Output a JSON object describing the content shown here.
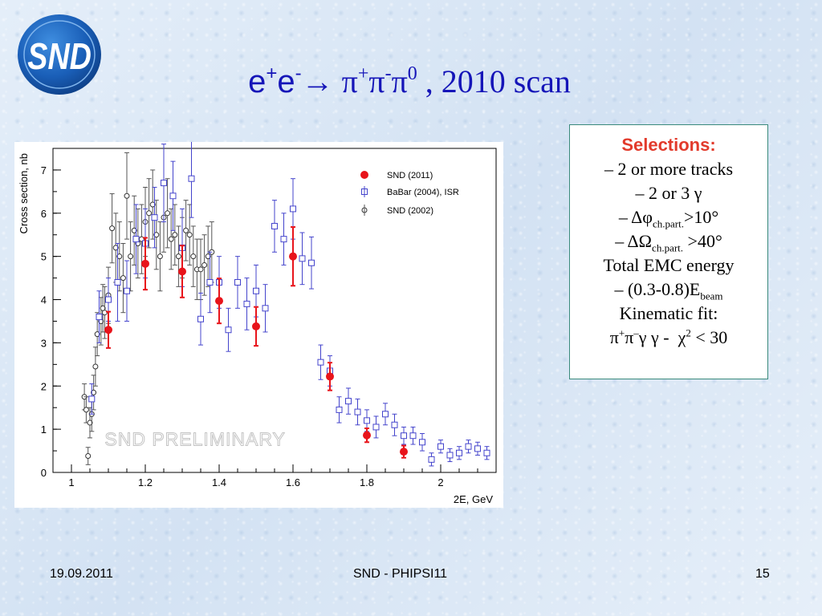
{
  "slide": {
    "logo_text": "SND",
    "title": {
      "reaction": "e⁺e⁻→ π⁺π⁻π⁰",
      "rest": ", 2010 scan"
    },
    "footer": {
      "date": "19.09.2011",
      "center": "SND - PHIPSI11",
      "page": "15"
    }
  },
  "selections": {
    "heading": "Selections:",
    "lines": [
      "– 2 or more tracks",
      "– 2 or 3 γ",
      "– Δφch.part.>10°",
      "– ΔΩch.part. >40°",
      "Total EMC energy",
      "– (0.3-0.8)Ebeam",
      "Kinematic fit:",
      "π⁺π⁻γ γ - χ² < 30"
    ]
  },
  "colors": {
    "title": "#1515b8",
    "snd2011": "#e8141b",
    "babar": "#4444cc",
    "snd2002": "#555555",
    "selections_heading": "#e23a2b"
  },
  "chart_data": {
    "type": "scatter",
    "xlabel": "2E, GeV",
    "ylabel": "Cross section, nb",
    "xlim": [
      0.95,
      2.15
    ],
    "ylim": [
      0,
      7.5
    ],
    "x_ticks": [
      "1",
      "1.2",
      "1.4",
      "1.6",
      "1.8",
      "2"
    ],
    "y_ticks": [
      "0",
      "1",
      "2",
      "3",
      "4",
      "5",
      "6",
      "7"
    ],
    "watermark": "SND PRELIMINARY",
    "legend_position": "top-right",
    "series": [
      {
        "name": "SND (2011)",
        "marker": "filled-circle",
        "points": [
          {
            "x": 1.1,
            "y": 3.3,
            "err": 0.42
          },
          {
            "x": 1.2,
            "y": 4.83,
            "err": 0.6
          },
          {
            "x": 1.3,
            "y": 4.65,
            "err": 0.6
          },
          {
            "x": 1.4,
            "y": 3.97,
            "err": 0.52
          },
          {
            "x": 1.5,
            "y": 3.38,
            "err": 0.45
          },
          {
            "x": 1.6,
            "y": 5.0,
            "err": 0.68
          },
          {
            "x": 1.7,
            "y": 2.22,
            "err": 0.32
          },
          {
            "x": 1.8,
            "y": 0.86,
            "err": 0.16
          },
          {
            "x": 1.9,
            "y": 0.48,
            "err": 0.14
          }
        ]
      },
      {
        "name": "BaBar (2004), ISR",
        "marker": "open-square",
        "points": [
          {
            "x": 1.055,
            "y": 1.7,
            "err": 0.35
          },
          {
            "x": 1.075,
            "y": 3.6,
            "err": 0.6
          },
          {
            "x": 1.1,
            "y": 4.0,
            "err": 0.5
          },
          {
            "x": 1.125,
            "y": 4.4,
            "err": 0.9
          },
          {
            "x": 1.15,
            "y": 4.2,
            "err": 0.7
          },
          {
            "x": 1.175,
            "y": 5.4,
            "err": 0.8
          },
          {
            "x": 1.2,
            "y": 5.3,
            "err": 0.8
          },
          {
            "x": 1.225,
            "y": 5.9,
            "err": 0.7
          },
          {
            "x": 1.25,
            "y": 6.7,
            "err": 0.9
          },
          {
            "x": 1.275,
            "y": 6.4,
            "err": 0.8
          },
          {
            "x": 1.3,
            "y": 5.2,
            "err": 0.9
          },
          {
            "x": 1.325,
            "y": 6.8,
            "err": 0.9
          },
          {
            "x": 1.35,
            "y": 3.55,
            "err": 0.6
          },
          {
            "x": 1.375,
            "y": 4.4,
            "err": 0.7
          },
          {
            "x": 1.4,
            "y": 4.4,
            "err": 0.6
          },
          {
            "x": 1.425,
            "y": 3.3,
            "err": 0.5
          },
          {
            "x": 1.45,
            "y": 4.4,
            "err": 0.6
          },
          {
            "x": 1.475,
            "y": 3.9,
            "err": 0.6
          },
          {
            "x": 1.5,
            "y": 4.2,
            "err": 0.6
          },
          {
            "x": 1.525,
            "y": 3.8,
            "err": 0.55
          },
          {
            "x": 1.55,
            "y": 5.7,
            "err": 0.6
          },
          {
            "x": 1.575,
            "y": 5.4,
            "err": 0.6
          },
          {
            "x": 1.6,
            "y": 6.1,
            "err": 0.7
          },
          {
            "x": 1.625,
            "y": 4.95,
            "err": 0.6
          },
          {
            "x": 1.65,
            "y": 4.85,
            "err": 0.6
          },
          {
            "x": 1.675,
            "y": 2.55,
            "err": 0.4
          },
          {
            "x": 1.7,
            "y": 2.35,
            "err": 0.35
          },
          {
            "x": 1.725,
            "y": 1.45,
            "err": 0.3
          },
          {
            "x": 1.75,
            "y": 1.65,
            "err": 0.3
          },
          {
            "x": 1.775,
            "y": 1.4,
            "err": 0.3
          },
          {
            "x": 1.8,
            "y": 1.2,
            "err": 0.25
          },
          {
            "x": 1.825,
            "y": 1.05,
            "err": 0.25
          },
          {
            "x": 1.85,
            "y": 1.35,
            "err": 0.25
          },
          {
            "x": 1.875,
            "y": 1.1,
            "err": 0.25
          },
          {
            "x": 1.9,
            "y": 0.85,
            "err": 0.2
          },
          {
            "x": 1.925,
            "y": 0.85,
            "err": 0.2
          },
          {
            "x": 1.95,
            "y": 0.7,
            "err": 0.2
          },
          {
            "x": 1.975,
            "y": 0.3,
            "err": 0.15
          },
          {
            "x": 2.0,
            "y": 0.6,
            "err": 0.15
          },
          {
            "x": 2.025,
            "y": 0.4,
            "err": 0.15
          },
          {
            "x": 2.05,
            "y": 0.45,
            "err": 0.15
          },
          {
            "x": 2.075,
            "y": 0.6,
            "err": 0.15
          },
          {
            "x": 2.1,
            "y": 0.55,
            "err": 0.15
          },
          {
            "x": 2.125,
            "y": 0.45,
            "err": 0.15
          }
        ]
      },
      {
        "name": "SND (2002)",
        "marker": "open-circle",
        "points": [
          {
            "x": 1.035,
            "y": 1.75,
            "err": 0.3
          },
          {
            "x": 1.04,
            "y": 1.45,
            "err": 0.3
          },
          {
            "x": 1.045,
            "y": 0.38,
            "err": 0.2
          },
          {
            "x": 1.05,
            "y": 1.15,
            "err": 0.35
          },
          {
            "x": 1.055,
            "y": 1.35,
            "err": 0.4
          },
          {
            "x": 1.06,
            "y": 1.85,
            "err": 0.4
          },
          {
            "x": 1.065,
            "y": 2.45,
            "err": 0.45
          },
          {
            "x": 1.07,
            "y": 3.2,
            "err": 0.5
          },
          {
            "x": 1.08,
            "y": 3.5,
            "err": 0.55
          },
          {
            "x": 1.085,
            "y": 3.8,
            "err": 0.55
          },
          {
            "x": 1.09,
            "y": 3.7,
            "err": 0.6
          },
          {
            "x": 1.1,
            "y": 4.1,
            "err": 0.65
          },
          {
            "x": 1.11,
            "y": 5.65,
            "err": 0.8
          },
          {
            "x": 1.12,
            "y": 5.2,
            "err": 0.8
          },
          {
            "x": 1.13,
            "y": 5.0,
            "err": 0.8
          },
          {
            "x": 1.14,
            "y": 4.5,
            "err": 0.8
          },
          {
            "x": 1.15,
            "y": 6.4,
            "err": 1.0
          },
          {
            "x": 1.16,
            "y": 5.0,
            "err": 0.8
          },
          {
            "x": 1.17,
            "y": 5.6,
            "err": 0.8
          },
          {
            "x": 1.18,
            "y": 5.3,
            "err": 0.8
          },
          {
            "x": 1.19,
            "y": 5.4,
            "err": 0.8
          },
          {
            "x": 1.2,
            "y": 5.8,
            "err": 0.8
          },
          {
            "x": 1.21,
            "y": 6.0,
            "err": 0.8
          },
          {
            "x": 1.22,
            "y": 6.2,
            "err": 0.8
          },
          {
            "x": 1.23,
            "y": 5.5,
            "err": 0.8
          },
          {
            "x": 1.24,
            "y": 5.0,
            "err": 0.8
          },
          {
            "x": 1.25,
            "y": 5.9,
            "err": 0.8
          },
          {
            "x": 1.26,
            "y": 6.0,
            "err": 0.8
          },
          {
            "x": 1.27,
            "y": 5.4,
            "err": 0.7
          },
          {
            "x": 1.28,
            "y": 5.5,
            "err": 0.7
          },
          {
            "x": 1.29,
            "y": 5.0,
            "err": 0.7
          },
          {
            "x": 1.3,
            "y": 5.2,
            "err": 0.7
          },
          {
            "x": 1.31,
            "y": 5.6,
            "err": 0.7
          },
          {
            "x": 1.32,
            "y": 5.5,
            "err": 0.7
          },
          {
            "x": 1.33,
            "y": 5.0,
            "err": 0.7
          },
          {
            "x": 1.34,
            "y": 4.7,
            "err": 0.7
          },
          {
            "x": 1.35,
            "y": 4.7,
            "err": 0.7
          },
          {
            "x": 1.36,
            "y": 4.8,
            "err": 0.7
          },
          {
            "x": 1.37,
            "y": 5.0,
            "err": 0.7
          },
          {
            "x": 1.38,
            "y": 5.1,
            "err": 0.7
          }
        ]
      }
    ]
  }
}
